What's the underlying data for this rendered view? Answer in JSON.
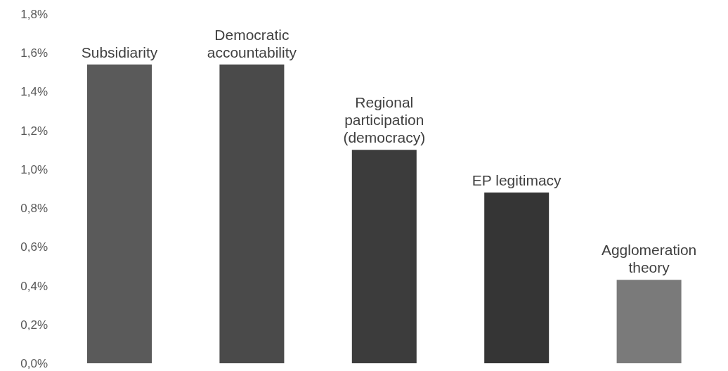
{
  "chart_data": {
    "type": "bar",
    "categories": [
      "Subsidiarity",
      "Democratic accountability",
      "Regional participation (democracy)",
      "EP legitimacy",
      "Agglomeration theory"
    ],
    "values": [
      1.54,
      1.54,
      1.1,
      0.88,
      0.43
    ],
    "colors": [
      "#5a5a5a",
      "#4a4a4a",
      "#3c3c3c",
      "#353535",
      "#7a7a7a"
    ],
    "ylim": [
      0,
      1.8
    ],
    "yticks": [
      {
        "value": 0,
        "label": "0,0%"
      },
      {
        "value": 0.2,
        "label": "0,2%"
      },
      {
        "value": 0.4,
        "label": "0,4%"
      },
      {
        "value": 0.6,
        "label": "0,6%"
      },
      {
        "value": 0.8,
        "label": "0,8%"
      },
      {
        "value": 1.0,
        "label": "1,0%"
      },
      {
        "value": 1.2,
        "label": "1,2%"
      },
      {
        "value": 1.4,
        "label": "1,4%"
      },
      {
        "value": 1.6,
        "label": "1,6%"
      },
      {
        "value": 1.8,
        "label": "1,8%"
      }
    ],
    "grid": false,
    "legend": false
  }
}
